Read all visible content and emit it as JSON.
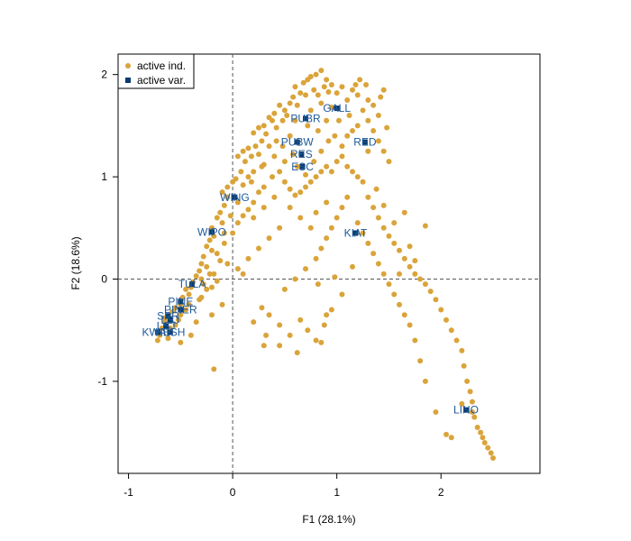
{
  "chart_data": {
    "type": "scatter",
    "title": "",
    "xlabel": "F1 (28.1%)",
    "ylabel": "F2 (18.6%)",
    "xlim": [
      -1.1,
      2.95
    ],
    "ylim": [
      -1.9,
      2.2
    ],
    "xticks": [
      -1,
      0,
      1,
      2
    ],
    "yticks": [
      -1,
      0,
      1,
      2
    ],
    "reference_lines": {
      "x": 0,
      "y": 0,
      "style": "dashed"
    },
    "grid": false,
    "legend": {
      "position": "top-left",
      "entries": [
        {
          "label": "active ind.",
          "marker": "circle",
          "color": "#daa43a"
        },
        {
          "label": "active var.",
          "marker": "square",
          "color": "#0b3b6e"
        }
      ]
    },
    "colors": {
      "individuals": "#daa43a",
      "variables": "#0b3b6e",
      "variable_labels": "#1f5a99"
    },
    "variables": [
      {
        "label": "GALL",
        "x": 1.0,
        "y": 1.67
      },
      {
        "label": "PUBR",
        "x": 0.7,
        "y": 1.57
      },
      {
        "label": "RED",
        "x": 1.27,
        "y": 1.34
      },
      {
        "label": "PUBW",
        "x": 0.62,
        "y": 1.34
      },
      {
        "label": "RES",
        "x": 0.66,
        "y": 1.22
      },
      {
        "label": "ESC",
        "x": 0.67,
        "y": 1.1
      },
      {
        "label": "WING",
        "x": 0.02,
        "y": 0.8
      },
      {
        "label": "KIAT",
        "x": 1.18,
        "y": 0.45
      },
      {
        "label": "WIPO",
        "x": -0.2,
        "y": 0.46
      },
      {
        "label": "TULA",
        "x": -0.39,
        "y": -0.05
      },
      {
        "label": "PINE",
        "x": -0.5,
        "y": -0.22
      },
      {
        "label": "PINER",
        "x": -0.5,
        "y": -0.3
      },
      {
        "label": "SPR",
        "x": -0.62,
        "y": -0.36
      },
      {
        "label": "LSJ",
        "x": -0.6,
        "y": -0.4
      },
      {
        "label": "LSJ",
        "x": -0.64,
        "y": -0.46
      },
      {
        "label": "KWAK",
        "x": -0.72,
        "y": -0.52
      },
      {
        "label": "HESH",
        "x": -0.6,
        "y": -0.52
      },
      {
        "label": "LINO",
        "x": 2.24,
        "y": -1.28
      }
    ],
    "individuals": [
      [
        0.8,
        2.0
      ],
      [
        0.85,
        2.04
      ],
      [
        0.75,
        1.98
      ],
      [
        0.72,
        1.95
      ],
      [
        0.68,
        1.92
      ],
      [
        0.9,
        1.95
      ],
      [
        0.95,
        1.9
      ],
      [
        0.6,
        1.88
      ],
      [
        0.65,
        1.82
      ],
      [
        0.78,
        1.85
      ],
      [
        0.82,
        1.8
      ],
      [
        0.88,
        1.88
      ],
      [
        0.92,
        1.83
      ],
      [
        0.7,
        1.8
      ],
      [
        0.58,
        1.78
      ],
      [
        0.55,
        1.72
      ],
      [
        0.62,
        1.7
      ],
      [
        0.5,
        1.65
      ],
      [
        0.45,
        1.7
      ],
      [
        0.52,
        1.6
      ],
      [
        0.48,
        1.55
      ],
      [
        0.4,
        1.62
      ],
      [
        0.38,
        1.55
      ],
      [
        0.42,
        1.48
      ],
      [
        0.35,
        1.58
      ],
      [
        0.3,
        1.5
      ],
      [
        0.25,
        1.48
      ],
      [
        0.32,
        1.42
      ],
      [
        0.2,
        1.43
      ],
      [
        0.28,
        1.35
      ],
      [
        0.22,
        1.3
      ],
      [
        0.15,
        1.28
      ],
      [
        0.1,
        1.25
      ],
      [
        0.05,
        1.2
      ],
      [
        0.12,
        1.15
      ],
      [
        0.18,
        1.2
      ],
      [
        0.25,
        1.22
      ],
      [
        0.3,
        1.12
      ],
      [
        0.2,
        1.05
      ],
      [
        0.15,
        1.0
      ],
      [
        0.08,
        1.05
      ],
      [
        0.03,
        0.98
      ],
      [
        0.1,
        0.92
      ],
      [
        0.0,
        0.95
      ],
      [
        -0.05,
        0.9
      ],
      [
        -0.1,
        0.85
      ],
      [
        -0.05,
        0.8
      ],
      [
        0.05,
        0.75
      ],
      [
        -0.08,
        0.72
      ],
      [
        -0.12,
        0.65
      ],
      [
        -0.15,
        0.6
      ],
      [
        -0.1,
        0.55
      ],
      [
        -0.2,
        0.5
      ],
      [
        -0.18,
        0.42
      ],
      [
        -0.22,
        0.38
      ],
      [
        -0.25,
        0.32
      ],
      [
        -0.2,
        0.28
      ],
      [
        -0.28,
        0.22
      ],
      [
        -0.3,
        0.15
      ],
      [
        -0.25,
        0.12
      ],
      [
        -0.32,
        0.08
      ],
      [
        -0.35,
        0.03
      ],
      [
        -0.3,
        0.0
      ],
      [
        -0.38,
        -0.03
      ],
      [
        -0.4,
        -0.08
      ],
      [
        -0.45,
        -0.1
      ],
      [
        -0.42,
        -0.15
      ],
      [
        -0.48,
        -0.18
      ],
      [
        -0.5,
        -0.25
      ],
      [
        -0.55,
        -0.28
      ],
      [
        -0.58,
        -0.32
      ],
      [
        -0.6,
        -0.38
      ],
      [
        -0.65,
        -0.42
      ],
      [
        -0.68,
        -0.48
      ],
      [
        -0.7,
        -0.55
      ],
      [
        -0.72,
        -0.6
      ],
      [
        -0.62,
        -0.58
      ],
      [
        -0.55,
        -0.45
      ],
      [
        -0.5,
        -0.35
      ],
      [
        -0.45,
        -0.3
      ],
      [
        -0.3,
        -0.18
      ],
      [
        -0.25,
        -0.1
      ],
      [
        -0.2,
        -0.08
      ],
      [
        -0.15,
        -0.02
      ],
      [
        -0.18,
        0.05
      ],
      [
        -0.12,
        0.18
      ],
      [
        -0.08,
        0.35
      ],
      [
        0.0,
        0.45
      ],
      [
        0.05,
        0.55
      ],
      [
        0.1,
        0.62
      ],
      [
        0.15,
        0.68
      ],
      [
        0.2,
        0.75
      ],
      [
        0.25,
        0.85
      ],
      [
        0.3,
        0.9
      ],
      [
        0.38,
        1.0
      ],
      [
        0.45,
        1.05
      ],
      [
        0.5,
        0.95
      ],
      [
        0.55,
        0.88
      ],
      [
        0.6,
        0.82
      ],
      [
        0.65,
        0.85
      ],
      [
        0.7,
        0.9
      ],
      [
        0.75,
        0.95
      ],
      [
        0.8,
        1.0
      ],
      [
        0.85,
        1.05
      ],
      [
        0.9,
        1.1
      ],
      [
        0.95,
        1.05
      ],
      [
        1.0,
        1.15
      ],
      [
        1.05,
        1.2
      ],
      [
        1.1,
        1.1
      ],
      [
        1.15,
        1.05
      ],
      [
        1.2,
        1.0
      ],
      [
        1.25,
        0.95
      ],
      [
        1.05,
        1.3
      ],
      [
        1.1,
        1.4
      ],
      [
        1.15,
        1.45
      ],
      [
        1.2,
        1.5
      ],
      [
        1.3,
        1.55
      ],
      [
        1.35,
        1.45
      ],
      [
        1.4,
        1.35
      ],
      [
        1.45,
        1.25
      ],
      [
        1.5,
        1.15
      ],
      [
        1.3,
        1.25
      ],
      [
        1.25,
        1.65
      ],
      [
        1.3,
        1.75
      ],
      [
        1.35,
        1.7
      ],
      [
        1.4,
        1.6
      ],
      [
        1.2,
        1.8
      ],
      [
        1.15,
        1.85
      ],
      [
        1.1,
        1.75
      ],
      [
        1.05,
        1.88
      ],
      [
        1.0,
        1.82
      ],
      [
        1.48,
        1.48
      ],
      [
        1.42,
        1.78
      ],
      [
        1.45,
        1.85
      ],
      [
        1.28,
        1.9
      ],
      [
        1.22,
        1.95
      ],
      [
        1.18,
        1.9
      ],
      [
        1.3,
        0.8
      ],
      [
        1.35,
        0.7
      ],
      [
        1.4,
        0.6
      ],
      [
        1.45,
        0.5
      ],
      [
        1.5,
        0.42
      ],
      [
        1.55,
        0.35
      ],
      [
        1.6,
        0.28
      ],
      [
        1.65,
        0.2
      ],
      [
        1.7,
        0.12
      ],
      [
        1.75,
        0.05
      ],
      [
        1.8,
        0.0
      ],
      [
        1.85,
        -0.05
      ],
      [
        1.9,
        -0.12
      ],
      [
        1.95,
        -0.2
      ],
      [
        2.0,
        -0.3
      ],
      [
        2.05,
        -0.4
      ],
      [
        2.1,
        -0.5
      ],
      [
        2.15,
        -0.6
      ],
      [
        2.2,
        -0.7
      ],
      [
        2.22,
        -0.85
      ],
      [
        2.25,
        -1.0
      ],
      [
        2.28,
        -1.1
      ],
      [
        2.3,
        -1.2
      ],
      [
        2.32,
        -1.35
      ],
      [
        2.35,
        -1.45
      ],
      [
        2.38,
        -1.5
      ],
      [
        2.4,
        -1.55
      ],
      [
        2.42,
        -1.6
      ],
      [
        2.45,
        -1.65
      ],
      [
        2.48,
        -1.7
      ],
      [
        2.5,
        -1.75
      ],
      [
        2.3,
        -1.3
      ],
      [
        2.2,
        -1.22
      ],
      [
        2.05,
        -1.52
      ],
      [
        2.1,
        -1.55
      ],
      [
        1.95,
        -1.3
      ],
      [
        1.85,
        -1.0
      ],
      [
        1.8,
        -0.8
      ],
      [
        1.75,
        -0.6
      ],
      [
        1.7,
        -0.45
      ],
      [
        1.65,
        -0.35
      ],
      [
        1.6,
        -0.25
      ],
      [
        1.55,
        -0.15
      ],
      [
        1.5,
        -0.05
      ],
      [
        1.45,
        0.05
      ],
      [
        1.4,
        0.15
      ],
      [
        1.35,
        0.25
      ],
      [
        1.3,
        0.35
      ],
      [
        1.25,
        0.45
      ],
      [
        1.2,
        0.55
      ],
      [
        1.6,
        0.05
      ],
      [
        1.7,
        0.32
      ],
      [
        1.75,
        0.18
      ],
      [
        1.85,
        0.52
      ],
      [
        1.65,
        0.65
      ],
      [
        1.55,
        0.55
      ],
      [
        1.45,
        0.72
      ],
      [
        1.38,
        0.88
      ],
      [
        1.15,
        0.12
      ],
      [
        1.05,
        -0.15
      ],
      [
        0.95,
        -0.3
      ],
      [
        0.88,
        -0.45
      ],
      [
        0.8,
        -0.6
      ],
      [
        0.72,
        -0.5
      ],
      [
        0.65,
        -0.4
      ],
      [
        0.55,
        -0.55
      ],
      [
        0.45,
        -0.45
      ],
      [
        0.35,
        -0.35
      ],
      [
        0.28,
        -0.28
      ],
      [
        0.2,
        -0.42
      ],
      [
        0.32,
        -0.55
      ],
      [
        0.45,
        -0.65
      ],
      [
        0.62,
        -0.72
      ],
      [
        0.85,
        -0.62
      ],
      [
        0.9,
        -0.35
      ],
      [
        0.3,
        -0.65
      ],
      [
        0.5,
        -0.1
      ],
      [
        0.6,
        0.0
      ],
      [
        0.7,
        0.1
      ],
      [
        0.8,
        0.2
      ],
      [
        0.85,
        0.3
      ],
      [
        0.9,
        0.4
      ],
      [
        0.95,
        0.5
      ],
      [
        1.0,
        0.6
      ],
      [
        1.05,
        0.7
      ],
      [
        1.1,
        0.8
      ],
      [
        0.75,
        0.5
      ],
      [
        0.65,
        0.6
      ],
      [
        0.55,
        0.7
      ],
      [
        0.45,
        0.5
      ],
      [
        0.35,
        0.4
      ],
      [
        0.25,
        0.3
      ],
      [
        0.15,
        0.2
      ],
      [
        0.05,
        0.1
      ],
      [
        0.2,
        0.6
      ],
      [
        0.3,
        0.7
      ],
      [
        0.4,
        0.8
      ],
      [
        0.8,
        0.65
      ],
      [
        0.9,
        0.75
      ],
      [
        -0.1,
        -0.25
      ],
      [
        -0.2,
        -0.35
      ],
      [
        -0.35,
        -0.42
      ],
      [
        -0.4,
        -0.55
      ],
      [
        -0.5,
        -0.62
      ],
      [
        -0.65,
        -0.38
      ],
      [
        -0.18,
        -0.88
      ],
      [
        0.82,
        -0.05
      ],
      [
        0.98,
        0.02
      ],
      [
        -0.05,
        0.15
      ],
      [
        0.1,
        0.05
      ],
      [
        0.6,
        1.55
      ],
      [
        0.75,
        1.65
      ],
      [
        0.85,
        1.72
      ],
      [
        0.95,
        1.68
      ],
      [
        0.55,
        1.4
      ],
      [
        0.48,
        1.3
      ],
      [
        0.72,
        1.5
      ],
      [
        0.82,
        1.45
      ],
      [
        0.9,
        1.55
      ],
      [
        0.62,
        1.1
      ],
      [
        0.7,
        1.02
      ],
      [
        0.78,
        1.15
      ],
      [
        0.85,
        1.25
      ],
      [
        0.92,
        1.35
      ],
      [
        0.98,
        1.4
      ],
      [
        1.02,
        1.55
      ],
      [
        1.12,
        1.6
      ],
      [
        0.35,
        1.3
      ],
      [
        0.4,
        1.2
      ],
      [
        0.5,
        1.15
      ],
      [
        0.58,
        1.22
      ],
      [
        0.42,
        1.35
      ],
      [
        0.28,
        1.1
      ],
      [
        0.18,
        0.95
      ],
      [
        -0.02,
        0.62
      ],
      [
        -0.08,
        0.45
      ],
      [
        -0.15,
        0.25
      ],
      [
        -0.22,
        0.05
      ],
      [
        -0.28,
        -0.05
      ],
      [
        -0.32,
        -0.2
      ],
      [
        -0.42,
        -0.25
      ],
      [
        -0.52,
        -0.4
      ],
      [
        -0.6,
        -0.48
      ]
    ]
  }
}
